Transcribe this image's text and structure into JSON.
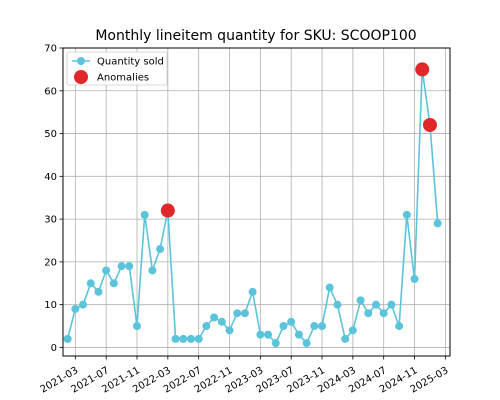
{
  "chart_data": {
    "type": "line",
    "title": "Monthly lineitem quantity for SKU: SCOOP100",
    "xlabel": "",
    "ylabel": "",
    "x": [
      "2021-02",
      "2021-03",
      "2021-04",
      "2021-05",
      "2021-06",
      "2021-07",
      "2021-08",
      "2021-09",
      "2021-10",
      "2021-11",
      "2021-12",
      "2022-01",
      "2022-02",
      "2022-03",
      "2022-04",
      "2022-05",
      "2022-06",
      "2022-07",
      "2022-08",
      "2022-09",
      "2022-10",
      "2022-11",
      "2022-12",
      "2023-01",
      "2023-02",
      "2023-03",
      "2023-04",
      "2023-05",
      "2023-06",
      "2023-07",
      "2023-08",
      "2023-09",
      "2023-10",
      "2023-11",
      "2023-12",
      "2024-01",
      "2024-02",
      "2024-03",
      "2024-04",
      "2024-05",
      "2024-06",
      "2024-07",
      "2024-08",
      "2024-09",
      "2024-10",
      "2024-11",
      "2024-12",
      "2025-01",
      "2025-02"
    ],
    "series": [
      {
        "name": "Quantity sold",
        "color": "#5bc4db",
        "values": [
          2,
          9,
          10,
          15,
          13,
          18,
          15,
          19,
          19,
          5,
          31,
          18,
          23,
          32,
          2,
          2,
          2,
          2,
          5,
          7,
          6,
          4,
          8,
          8,
          13,
          3,
          3,
          1,
          5,
          6,
          3,
          1,
          5,
          5,
          14,
          10,
          2,
          4,
          11,
          8,
          10,
          8,
          10,
          5,
          31,
          16,
          65,
          52,
          29
        ]
      }
    ],
    "anomalies": {
      "name": "Anomalies",
      "color": "#e0272a",
      "points": [
        {
          "x": "2022-03",
          "y": 32
        },
        {
          "x": "2024-12",
          "y": 65
        },
        {
          "x": "2025-01",
          "y": 52
        }
      ]
    },
    "x_ticks": [
      "2021-03",
      "2021-07",
      "2021-11",
      "2022-03",
      "2022-07",
      "2022-11",
      "2023-03",
      "2023-07",
      "2023-11",
      "2024-03",
      "2024-07",
      "2024-11",
      "2025-03"
    ],
    "y_ticks": [
      0,
      10,
      20,
      30,
      40,
      50,
      60,
      70
    ],
    "xlim": [
      "2021-01",
      "2025-03"
    ],
    "ylim": [
      -2,
      70
    ],
    "grid": true,
    "legend": "top-left"
  }
}
